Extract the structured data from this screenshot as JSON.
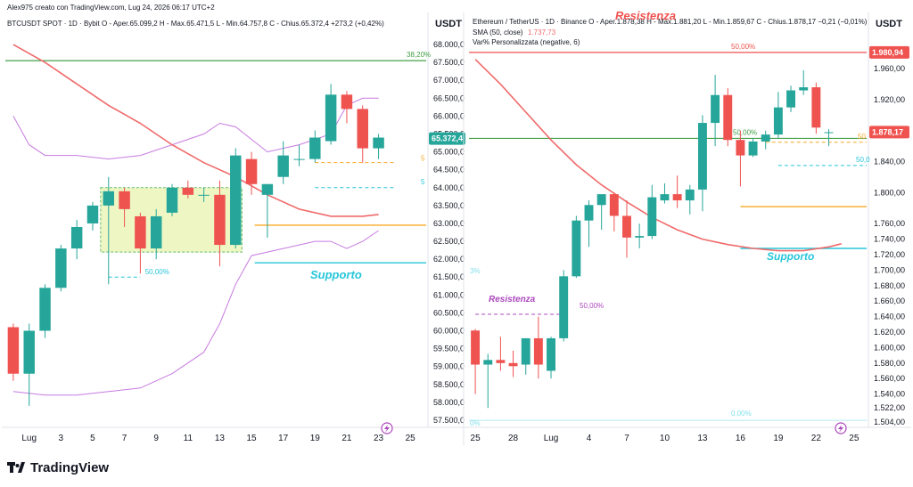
{
  "header_credit": "Alex975 creato con TradingView.com, Lug 24, 2026 06:17 UTC+2",
  "footer_brand": "TradingView",
  "colors": {
    "up": "#26a69a",
    "down": "#ef5350",
    "sma": "#f06a6a",
    "bb": "#c77be0",
    "support": "#26c6da",
    "resist": "#ef5350",
    "green_line": "#43a047",
    "orange_line": "#f9a825",
    "box_fill": "#eef7c4",
    "box_border": "#66bb6a",
    "resist_purple": "#ab47bc"
  },
  "chart_data": [
    {
      "type": "candlestick",
      "name": "BTC",
      "info_line": "BTCUSDT SPOT · 1D · Bybit  O - Aper.65.099,2  H - Max.65.471,5  L - Min.64.757,8  C - Chius.65.372,4  +273,2 (+0,42%)",
      "axis_unit": "USDT",
      "ylim": [
        57300,
        68300
      ],
      "y_ticks": [
        "68.000,0",
        "67.500,0",
        "67.000,0",
        "66.500,0",
        "66.000,0",
        "65.500,0",
        "65.000,0",
        "64.500,0",
        "64.000,0",
        "63.500,0",
        "63.000,0",
        "62.500,0",
        "62.000,0",
        "61.500,0",
        "61.000,0",
        "60.500,0",
        "60.000,0",
        "59.500,0",
        "59.000,0",
        "58.500,0",
        "58.000,0",
        "57.500,0"
      ],
      "y_tick_values": [
        68000,
        67500,
        67000,
        66500,
        66000,
        65500,
        65000,
        64500,
        64000,
        63500,
        63000,
        62500,
        62000,
        61500,
        61000,
        60500,
        60000,
        59500,
        59000,
        58500,
        58000,
        57500
      ],
      "x_labels": [
        "Lug",
        "3",
        "5",
        "7",
        "9",
        "11",
        "13",
        "15",
        "17",
        "19",
        "21",
        "23",
        "25"
      ],
      "x_label_idx": [
        1,
        3,
        5,
        7,
        9,
        11,
        13,
        15,
        17,
        19,
        21,
        23,
        25
      ],
      "x_range": [
        -0.5,
        26
      ],
      "last_price_label": "65.372,4",
      "last_price": 65372.4,
      "candles": [
        {
          "i": 0,
          "o": 60100,
          "h": 60200,
          "l": 58600,
          "c": 58800
        },
        {
          "i": 1,
          "o": 58800,
          "h": 60200,
          "l": 57900,
          "c": 60000
        },
        {
          "i": 2,
          "o": 60000,
          "h": 61300,
          "l": 59800,
          "c": 61200
        },
        {
          "i": 3,
          "o": 61200,
          "h": 62400,
          "l": 61100,
          "c": 62300
        },
        {
          "i": 4,
          "o": 62300,
          "h": 63100,
          "l": 62000,
          "c": 62900
        },
        {
          "i": 5,
          "o": 63000,
          "h": 63600,
          "l": 62800,
          "c": 63500
        },
        {
          "i": 6,
          "o": 63500,
          "h": 64300,
          "l": 61300,
          "c": 63900
        },
        {
          "i": 7,
          "o": 63900,
          "h": 64000,
          "l": 62900,
          "c": 63400
        },
        {
          "i": 8,
          "o": 63200,
          "h": 63300,
          "l": 61600,
          "c": 62300
        },
        {
          "i": 9,
          "o": 62300,
          "h": 63400,
          "l": 62000,
          "c": 63200
        },
        {
          "i": 10,
          "o": 63300,
          "h": 64100,
          "l": 63200,
          "c": 64000
        },
        {
          "i": 11,
          "o": 64000,
          "h": 64200,
          "l": 63700,
          "c": 63800
        },
        {
          "i": 12,
          "o": 63800,
          "h": 64000,
          "l": 63600,
          "c": 63800
        },
        {
          "i": 13,
          "o": 63800,
          "h": 64200,
          "l": 61800,
          "c": 62400
        },
        {
          "i": 14,
          "o": 62400,
          "h": 65100,
          "l": 62300,
          "c": 64900
        },
        {
          "i": 15,
          "o": 64800,
          "h": 65000,
          "l": 63800,
          "c": 64100
        },
        {
          "i": 16,
          "o": 63800,
          "h": 64100,
          "l": 62600,
          "c": 64100
        },
        {
          "i": 17,
          "o": 64300,
          "h": 65300,
          "l": 64100,
          "c": 64900
        },
        {
          "i": 18,
          "o": 64800,
          "h": 65200,
          "l": 64600,
          "c": 64800
        },
        {
          "i": 19,
          "o": 64800,
          "h": 65600,
          "l": 64700,
          "c": 65400
        },
        {
          "i": 20,
          "o": 65300,
          "h": 66900,
          "l": 65200,
          "c": 66600
        },
        {
          "i": 21,
          "o": 66600,
          "h": 66700,
          "l": 65800,
          "c": 66200
        },
        {
          "i": 22,
          "o": 66200,
          "h": 66300,
          "l": 64700,
          "c": 65100
        },
        {
          "i": 23,
          "o": 65100,
          "h": 65500,
          "l": 64800,
          "c": 65400
        }
      ],
      "sma": [
        [
          0,
          68000
        ],
        [
          2,
          67500
        ],
        [
          4,
          66900
        ],
        [
          6,
          66300
        ],
        [
          8,
          65800
        ],
        [
          10,
          65200
        ],
        [
          12,
          64700
        ],
        [
          14,
          64300
        ],
        [
          16,
          63800
        ],
        [
          18,
          63400
        ],
        [
          20,
          63200
        ],
        [
          22,
          63200
        ],
        [
          23,
          63250
        ]
      ],
      "bb_upper": [
        [
          0,
          66000
        ],
        [
          1,
          65200
        ],
        [
          2,
          64900
        ],
        [
          4,
          64900
        ],
        [
          6,
          64800
        ],
        [
          8,
          64900
        ],
        [
          10,
          65200
        ],
        [
          12,
          65500
        ],
        [
          13,
          65800
        ],
        [
          14,
          65700
        ],
        [
          16,
          65000
        ],
        [
          18,
          65200
        ],
        [
          20,
          65500
        ],
        [
          21,
          66300
        ],
        [
          22,
          66500
        ],
        [
          23,
          66500
        ]
      ],
      "bb_lower": [
        [
          0,
          58300
        ],
        [
          2,
          58200
        ],
        [
          4,
          58200
        ],
        [
          6,
          58300
        ],
        [
          8,
          58400
        ],
        [
          10,
          58800
        ],
        [
          12,
          59400
        ],
        [
          13,
          60200
        ],
        [
          14,
          61300
        ],
        [
          15,
          62100
        ],
        [
          17,
          62300
        ],
        [
          19,
          62500
        ],
        [
          20,
          62500
        ],
        [
          21,
          62300
        ],
        [
          22,
          62500
        ],
        [
          23,
          62800
        ]
      ],
      "green_level": 67550,
      "green_label": "38,20%",
      "orange_level": 62950,
      "support_level": 61900,
      "support_label": "Supporto",
      "dash_orange": {
        "y": 64700,
        "from": 19,
        "to": 24
      },
      "dash_blue": {
        "y": 64000,
        "from": 19,
        "to": 24
      },
      "small_dash_blue": {
        "y": 61500,
        "from": 6,
        "to": 8
      },
      "fib_label": "50,00%",
      "box": {
        "from": 5.5,
        "to": 14.4,
        "top": 64000,
        "bottom": 62200
      },
      "side_labels": [
        "5",
        "5"
      ]
    },
    {
      "type": "candlestick",
      "name": "ETH",
      "info_line": "Ethereum / TetherUS · 1D · Binance  O - Aper.1.878,38  H - Max.1.881,20  L - Min.1.859,67  C - Chius.1.878,17  −0,21 (−0,01%)",
      "sma_label": "SMA (50, close)",
      "sma_value": "1.737,73",
      "var_label": "Var% Personalizzata (negative, 6)",
      "axis_unit": "USDT",
      "ylim": [
        1497,
        2005
      ],
      "y_ticks": [
        "1.960,00",
        "1.920,00",
        "1.880,00",
        "1.840,00",
        "1.800,00",
        "1.760,00",
        "1.740,00",
        "1.720,00",
        "1.700,00",
        "1.680,00",
        "1.660,00",
        "1.640,00",
        "1.620,00",
        "1.600,00",
        "1.580,00",
        "1.560,00",
        "1.540,00",
        "1.522,00",
        "1.504,00"
      ],
      "y_tick_values": [
        1960,
        1920,
        1880,
        1840,
        1800,
        1760,
        1740,
        1720,
        1700,
        1680,
        1660,
        1640,
        1620,
        1600,
        1580,
        1560,
        1540,
        1522,
        1504
      ],
      "x_labels": [
        "25",
        "28",
        "Lug",
        "4",
        "7",
        "10",
        "13",
        "16",
        "19",
        "22",
        "25"
      ],
      "x_label_idx": [
        0,
        3,
        6,
        9,
        12,
        15,
        18,
        21,
        24,
        27,
        30
      ],
      "x_range": [
        -0.5,
        31
      ],
      "last_price_label": "1.878,17",
      "last_price": 1878.17,
      "resist_top_label": "Resistenza",
      "resist_top_level": 1981,
      "resist_top_value": "1.980,94",
      "resist_top_pct": "50,00%",
      "resist_low_label": "Resistenza",
      "resist_low_level": 1643,
      "resist_low_pct": "50,00%",
      "green_level": 1870,
      "green_pct": "50,00%",
      "orange_level": 1782,
      "support_level": 1728,
      "support_label": "Supporto",
      "dash_orange": {
        "y": 1865,
        "from": 23,
        "to": 31
      },
      "dash_blue": {
        "y": 1835,
        "from": 24,
        "to": 31
      },
      "bottom_level": 1506,
      "bottom_pct": "0,00%",
      "side_labels": [
        "50",
        "50,0"
      ],
      "side_left_labels": [
        "3%",
        "0%"
      ],
      "candles": [
        {
          "i": 0,
          "o": 1622,
          "h": 1624,
          "l": 1540,
          "c": 1578
        },
        {
          "i": 1,
          "o": 1578,
          "h": 1592,
          "l": 1522,
          "c": 1584
        },
        {
          "i": 2,
          "o": 1584,
          "h": 1614,
          "l": 1570,
          "c": 1580
        },
        {
          "i": 3,
          "o": 1580,
          "h": 1596,
          "l": 1562,
          "c": 1576
        },
        {
          "i": 4,
          "o": 1578,
          "h": 1612,
          "l": 1565,
          "c": 1612
        },
        {
          "i": 5,
          "o": 1612,
          "h": 1640,
          "l": 1560,
          "c": 1578
        },
        {
          "i": 6,
          "o": 1570,
          "h": 1614,
          "l": 1560,
          "c": 1612
        },
        {
          "i": 7,
          "o": 1612,
          "h": 1700,
          "l": 1608,
          "c": 1692
        },
        {
          "i": 8,
          "o": 1692,
          "h": 1770,
          "l": 1690,
          "c": 1764
        },
        {
          "i": 9,
          "o": 1764,
          "h": 1790,
          "l": 1730,
          "c": 1784
        },
        {
          "i": 10,
          "o": 1784,
          "h": 1795,
          "l": 1752,
          "c": 1798
        },
        {
          "i": 11,
          "o": 1798,
          "h": 1800,
          "l": 1750,
          "c": 1770
        },
        {
          "i": 12,
          "o": 1770,
          "h": 1790,
          "l": 1716,
          "c": 1742
        },
        {
          "i": 13,
          "o": 1742,
          "h": 1760,
          "l": 1728,
          "c": 1744
        },
        {
          "i": 14,
          "o": 1744,
          "h": 1810,
          "l": 1740,
          "c": 1794
        },
        {
          "i": 15,
          "o": 1790,
          "h": 1812,
          "l": 1786,
          "c": 1798
        },
        {
          "i": 16,
          "o": 1798,
          "h": 1822,
          "l": 1780,
          "c": 1790
        },
        {
          "i": 17,
          "o": 1790,
          "h": 1810,
          "l": 1772,
          "c": 1804
        },
        {
          "i": 18,
          "o": 1804,
          "h": 1900,
          "l": 1776,
          "c": 1890
        },
        {
          "i": 19,
          "o": 1890,
          "h": 1952,
          "l": 1860,
          "c": 1926
        },
        {
          "i": 20,
          "o": 1926,
          "h": 1935,
          "l": 1860,
          "c": 1868
        },
        {
          "i": 21,
          "o": 1868,
          "h": 1880,
          "l": 1808,
          "c": 1848
        },
        {
          "i": 22,
          "o": 1848,
          "h": 1870,
          "l": 1846,
          "c": 1866
        },
        {
          "i": 23,
          "o": 1866,
          "h": 1880,
          "l": 1856,
          "c": 1875
        },
        {
          "i": 24,
          "o": 1875,
          "h": 1930,
          "l": 1870,
          "c": 1910
        },
        {
          "i": 25,
          "o": 1910,
          "h": 1938,
          "l": 1904,
          "c": 1932
        },
        {
          "i": 26,
          "o": 1932,
          "h": 1958,
          "l": 1926,
          "c": 1936
        },
        {
          "i": 27,
          "o": 1936,
          "h": 1942,
          "l": 1876,
          "c": 1884
        },
        {
          "i": 28,
          "o": 1878,
          "h": 1882,
          "l": 1860,
          "c": 1878
        }
      ],
      "sma": [
        [
          0,
          1972
        ],
        [
          2,
          1940
        ],
        [
          4,
          1904
        ],
        [
          6,
          1868
        ],
        [
          8,
          1836
        ],
        [
          10,
          1810
        ],
        [
          12,
          1788
        ],
        [
          14,
          1768
        ],
        [
          16,
          1752
        ],
        [
          18,
          1740
        ],
        [
          20,
          1733
        ],
        [
          22,
          1728
        ],
        [
          24,
          1725
        ],
        [
          26,
          1725
        ],
        [
          28,
          1730
        ],
        [
          29,
          1734
        ]
      ]
    }
  ]
}
